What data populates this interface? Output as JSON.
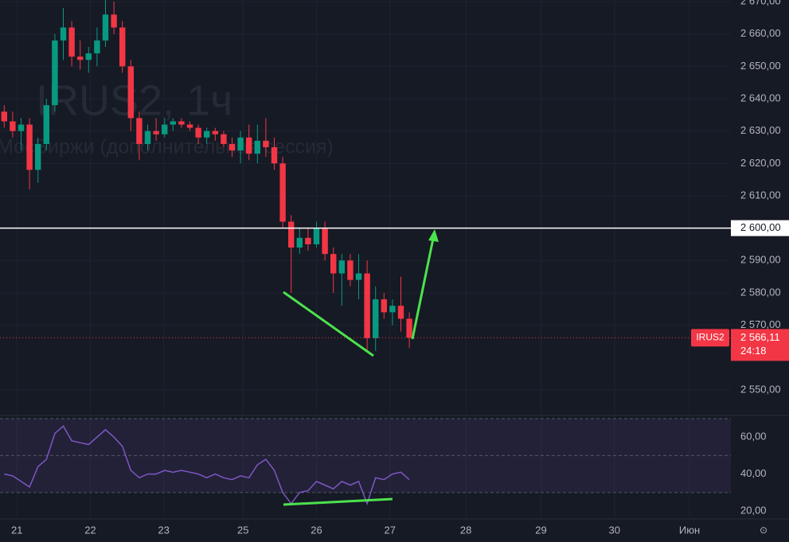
{
  "chart_data": [
    {
      "type": "candlestick",
      "symbol": "IRUS2",
      "watermark": "IRUS2, 1ч",
      "watermark_subtitle": "МосБиржи (дополнительная сессия)",
      "up_color": "#089981",
      "down_color": "#f23645",
      "xlim": [
        0,
        86.6
      ],
      "ylim": [
        2542.6,
        2670.5
      ],
      "yticks": [
        {
          "value": 2550,
          "label": "2 550,00"
        },
        {
          "value": 2570,
          "label": "2 570,00"
        },
        {
          "value": 2580,
          "label": "2 580,00"
        },
        {
          "value": 2590,
          "label": "2 590,00"
        },
        {
          "value": 2600,
          "label": "2 600,00"
        },
        {
          "value": 2610,
          "label": "2 610,00"
        },
        {
          "value": 2620,
          "label": "2 620,00"
        },
        {
          "value": 2630,
          "label": "2 630,00"
        },
        {
          "value": 2640,
          "label": "2 640,00"
        },
        {
          "value": 2650,
          "label": "2 650,00"
        },
        {
          "value": 2660,
          "label": "2 660,00"
        },
        {
          "value": 2670,
          "label": "2 670,00"
        }
      ],
      "hline": {
        "value": 2600,
        "label": "2 600,00",
        "color": "#ffffff"
      },
      "last_price": {
        "value": 2566.11,
        "label": "2 566,11"
      },
      "countdown": "24:18",
      "grid": true,
      "candles": [
        {
          "open": 2636,
          "high": 2638,
          "low": 2631,
          "close": 2633
        },
        {
          "open": 2633,
          "high": 2636,
          "low": 2628,
          "close": 2630
        },
        {
          "open": 2630,
          "high": 2634,
          "low": 2624,
          "close": 2632
        },
        {
          "open": 2632,
          "high": 2634,
          "low": 2612,
          "close": 2618
        },
        {
          "open": 2618,
          "high": 2628,
          "low": 2614,
          "close": 2626
        },
        {
          "open": 2626,
          "high": 2640,
          "low": 2624,
          "close": 2638
        },
        {
          "open": 2638,
          "high": 2660,
          "low": 2636,
          "close": 2658
        },
        {
          "open": 2658,
          "high": 2668,
          "low": 2652,
          "close": 2662
        },
        {
          "open": 2662,
          "high": 2664,
          "low": 2650,
          "close": 2653
        },
        {
          "open": 2653,
          "high": 2658,
          "low": 2649,
          "close": 2652
        },
        {
          "open": 2652,
          "high": 2656,
          "low": 2648,
          "close": 2654
        },
        {
          "open": 2654,
          "high": 2662,
          "low": 2650,
          "close": 2658
        },
        {
          "open": 2658,
          "high": 2672,
          "low": 2656,
          "close": 2666
        },
        {
          "open": 2666,
          "high": 2670,
          "low": 2660,
          "close": 2662
        },
        {
          "open": 2662,
          "high": 2664,
          "low": 2648,
          "close": 2650
        },
        {
          "open": 2650,
          "high": 2652,
          "low": 2630,
          "close": 2634
        },
        {
          "open": 2634,
          "high": 2636,
          "low": 2621,
          "close": 2626
        },
        {
          "open": 2626,
          "high": 2632,
          "low": 2624,
          "close": 2630
        },
        {
          "open": 2630,
          "high": 2634,
          "low": 2627,
          "close": 2629
        },
        {
          "open": 2629,
          "high": 2634,
          "low": 2628,
          "close": 2632
        },
        {
          "open": 2632,
          "high": 2634,
          "low": 2630,
          "close": 2633
        },
        {
          "open": 2633,
          "high": 2634,
          "low": 2631,
          "close": 2632
        },
        {
          "open": 2632,
          "high": 2633,
          "low": 2630,
          "close": 2631
        },
        {
          "open": 2631,
          "high": 2632,
          "low": 2626,
          "close": 2628
        },
        {
          "open": 2628,
          "high": 2631,
          "low": 2626,
          "close": 2630
        },
        {
          "open": 2630,
          "high": 2631,
          "low": 2627,
          "close": 2629
        },
        {
          "open": 2629,
          "high": 2630,
          "low": 2625,
          "close": 2626
        },
        {
          "open": 2626,
          "high": 2628,
          "low": 2622,
          "close": 2624
        },
        {
          "open": 2624,
          "high": 2630,
          "low": 2620,
          "close": 2628
        },
        {
          "open": 2628,
          "high": 2632,
          "low": 2621,
          "close": 2623
        },
        {
          "open": 2623,
          "high": 2632,
          "low": 2620,
          "close": 2627
        },
        {
          "open": 2627,
          "high": 2634,
          "low": 2622,
          "close": 2625
        },
        {
          "open": 2625,
          "high": 2628,
          "low": 2618,
          "close": 2620
        },
        {
          "open": 2620,
          "high": 2622,
          "low": 2600,
          "close": 2602
        },
        {
          "open": 2602,
          "high": 2604,
          "low": 2580,
          "close": 2594
        },
        {
          "open": 2594,
          "high": 2600,
          "low": 2592,
          "close": 2597
        },
        {
          "open": 2597,
          "high": 2600,
          "low": 2593,
          "close": 2595
        },
        {
          "open": 2595,
          "high": 2602,
          "low": 2594,
          "close": 2600
        },
        {
          "open": 2600,
          "high": 2602,
          "low": 2590,
          "close": 2592
        },
        {
          "open": 2592,
          "high": 2594,
          "low": 2580,
          "close": 2586
        },
        {
          "open": 2586,
          "high": 2592,
          "low": 2576,
          "close": 2590
        },
        {
          "open": 2590,
          "high": 2592,
          "low": 2582,
          "close": 2584
        },
        {
          "open": 2584,
          "high": 2592,
          "low": 2578,
          "close": 2586
        },
        {
          "open": 2586,
          "high": 2590,
          "low": 2562,
          "close": 2566
        },
        {
          "open": 2566,
          "high": 2582,
          "low": 2562,
          "close": 2578
        },
        {
          "open": 2578,
          "high": 2580,
          "low": 2572,
          "close": 2574
        },
        {
          "open": 2574,
          "high": 2578,
          "low": 2570,
          "close": 2576
        },
        {
          "open": 2576,
          "high": 2585,
          "low": 2568,
          "close": 2572
        },
        {
          "open": 2572,
          "high": 2574,
          "low": 2563,
          "close": 2566.11
        }
      ]
    },
    {
      "type": "line",
      "color": "#7e57c2",
      "band_color": "#7e57c2",
      "xlim": [
        0,
        86.6
      ],
      "ylim": [
        17,
        70
      ],
      "yticks": [
        {
          "value": 20,
          "label": "20,00"
        },
        {
          "value": 40,
          "label": "40,00"
        },
        {
          "value": 60,
          "label": "60,00"
        }
      ],
      "bands": [
        30,
        50,
        70
      ],
      "xticks": [
        {
          "value": 2,
          "label": "21"
        },
        {
          "value": 10.7,
          "label": "22"
        },
        {
          "value": 19.4,
          "label": "23"
        },
        {
          "value": 28.8,
          "label": "25"
        },
        {
          "value": 37.5,
          "label": "26"
        },
        {
          "value": 46.2,
          "label": "27"
        },
        {
          "value": 55.2,
          "label": "28"
        },
        {
          "value": 64.1,
          "label": "29"
        },
        {
          "value": 72.8,
          "label": "30"
        },
        {
          "value": 81.7,
          "label": "Июн"
        }
      ],
      "values": [
        40,
        39,
        36,
        33,
        44,
        48,
        62,
        66,
        58,
        57,
        56,
        60,
        64,
        60,
        55,
        42,
        38,
        40,
        40,
        42,
        41,
        42,
        41,
        40,
        38,
        40,
        38,
        37,
        39,
        38,
        45,
        48,
        42,
        30,
        24,
        30,
        31,
        36,
        34,
        32,
        36,
        34,
        36,
        24,
        38,
        37,
        40,
        41,
        37
      ]
    }
  ]
}
